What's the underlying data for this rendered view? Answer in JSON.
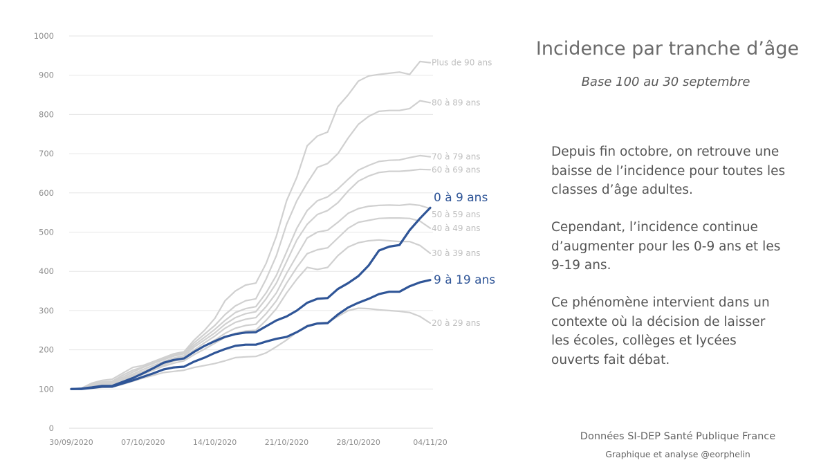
{
  "panel": {
    "title": "Incidence par tranche d’âge",
    "subtitle": "Base 100 au 30 septembre",
    "paragraphs": [
      "Depuis fin octobre, on retrouve une baisse de l’incidence pour toutes les classes d’âge adultes.",
      "Cependant, l’incidence continue d’augmenter pour les 0-9 ans et les 9-19 ans.",
      "Ce phénomène intervient dans un contexte où la décision de laisser les écoles, collèges et lycées ouverts fait débat."
    ],
    "source": "Données SI-DEP Santé Publique France",
    "author": "Graphique et analyse @eorphelin"
  },
  "colors": {
    "highlight": "#2f5597",
    "background_series": "#d0d0d0",
    "axis_text": "#8c8c8c",
    "grid": "#e6e6e6"
  },
  "chart_data": {
    "type": "line",
    "title": "",
    "xlabel": "",
    "ylabel": "",
    "ylim": [
      0,
      1000
    ],
    "yticks": [
      0,
      100,
      200,
      300,
      400,
      500,
      600,
      700,
      800,
      900,
      1000
    ],
    "grid": true,
    "x_tick_labels": [
      "30/09/2020",
      "07/10/2020",
      "14/10/2020",
      "21/10/2020",
      "28/10/2020",
      "04/11/20"
    ],
    "x": [
      "30/09",
      "01/10",
      "02/10",
      "03/10",
      "04/10",
      "05/10",
      "06/10",
      "07/10",
      "08/10",
      "09/10",
      "10/10",
      "11/10",
      "12/10",
      "13/10",
      "14/10",
      "15/10",
      "16/10",
      "17/10",
      "18/10",
      "19/10",
      "20/10",
      "21/10",
      "22/10",
      "23/10",
      "24/10",
      "25/10",
      "26/10",
      "27/10",
      "28/10",
      "29/10",
      "30/10",
      "31/10",
      "01/11",
      "02/11",
      "03/11",
      "04/11"
    ],
    "series": [
      {
        "name": "Plus de 90 ans",
        "highlight": false,
        "values": [
          100,
          102,
          115,
          122,
          125,
          140,
          155,
          160,
          170,
          180,
          190,
          195,
          225,
          250,
          280,
          325,
          350,
          365,
          370,
          420,
          490,
          580,
          640,
          720,
          745,
          755,
          820,
          850,
          885,
          898,
          902,
          905,
          908,
          902,
          935,
          932
        ]
      },
      {
        "name": "80 à 89 ans",
        "highlight": false,
        "values": [
          100,
          102,
          112,
          118,
          120,
          135,
          148,
          156,
          166,
          177,
          186,
          192,
          218,
          240,
          262,
          290,
          312,
          325,
          330,
          380,
          440,
          520,
          580,
          625,
          665,
          675,
          700,
          740,
          775,
          795,
          808,
          810,
          810,
          815,
          835,
          830
        ]
      },
      {
        "name": "70 à 79 ans",
        "highlight": false,
        "values": [
          100,
          101,
          110,
          116,
          118,
          130,
          143,
          155,
          165,
          175,
          184,
          190,
          212,
          232,
          252,
          275,
          295,
          305,
          310,
          345,
          390,
          450,
          510,
          555,
          580,
          590,
          610,
          635,
          658,
          670,
          680,
          683,
          684,
          690,
          695,
          692
        ]
      },
      {
        "name": "60 à 69 ans",
        "highlight": false,
        "values": [
          100,
          100,
          108,
          113,
          115,
          126,
          138,
          150,
          160,
          170,
          179,
          185,
          207,
          225,
          243,
          265,
          282,
          292,
          297,
          330,
          370,
          425,
          480,
          520,
          545,
          555,
          575,
          605,
          630,
          643,
          652,
          655,
          655,
          657,
          660,
          659
        ]
      },
      {
        "name": "50 à 59 ans",
        "highlight": false,
        "values": [
          100,
          100,
          106,
          110,
          112,
          122,
          134,
          145,
          155,
          166,
          175,
          181,
          200,
          218,
          235,
          255,
          270,
          278,
          282,
          310,
          345,
          395,
          440,
          485,
          500,
          505,
          525,
          548,
          560,
          566,
          568,
          569,
          568,
          571,
          568,
          560
        ]
      },
      {
        "name": "40 à 49 ans",
        "highlight": false,
        "values": [
          100,
          100,
          105,
          108,
          110,
          120,
          131,
          142,
          152,
          162,
          171,
          177,
          194,
          210,
          225,
          242,
          255,
          262,
          265,
          292,
          325,
          370,
          410,
          445,
          455,
          460,
          485,
          510,
          525,
          530,
          535,
          536,
          536,
          535,
          528,
          510
        ]
      },
      {
        "name": "30 à 39 ans",
        "highlight": false,
        "values": [
          100,
          100,
          104,
          107,
          109,
          118,
          128,
          138,
          148,
          158,
          166,
          172,
          188,
          202,
          217,
          232,
          242,
          248,
          250,
          275,
          305,
          345,
          380,
          410,
          405,
          410,
          440,
          462,
          473,
          478,
          480,
          478,
          476,
          476,
          466,
          446
        ]
      },
      {
        "name": "20 à 29 ans",
        "highlight": false,
        "values": [
          100,
          100,
          102,
          104,
          105,
          112,
          120,
          128,
          135,
          142,
          145,
          148,
          155,
          160,
          165,
          172,
          180,
          182,
          183,
          192,
          208,
          225,
          245,
          262,
          268,
          270,
          285,
          300,
          306,
          305,
          302,
          300,
          298,
          295,
          285,
          268
        ]
      },
      {
        "name": "0 à 9 ans",
        "highlight": true,
        "label_size": 17,
        "values": [
          100,
          101,
          104,
          108,
          108,
          118,
          128,
          140,
          153,
          167,
          174,
          178,
          195,
          210,
          222,
          233,
          240,
          244,
          245,
          260,
          275,
          285,
          300,
          320,
          330,
          332,
          355,
          370,
          388,
          415,
          453,
          463,
          467,
          505,
          535,
          562
        ]
      },
      {
        "name": "9 à 19 ans",
        "highlight": true,
        "label_size": 17,
        "values": [
          100,
          100,
          103,
          106,
          106,
          114,
          122,
          131,
          140,
          150,
          155,
          157,
          170,
          180,
          192,
          202,
          210,
          213,
          213,
          221,
          228,
          233,
          245,
          260,
          267,
          268,
          290,
          308,
          320,
          330,
          342,
          348,
          348,
          362,
          372,
          378
        ]
      }
    ]
  }
}
